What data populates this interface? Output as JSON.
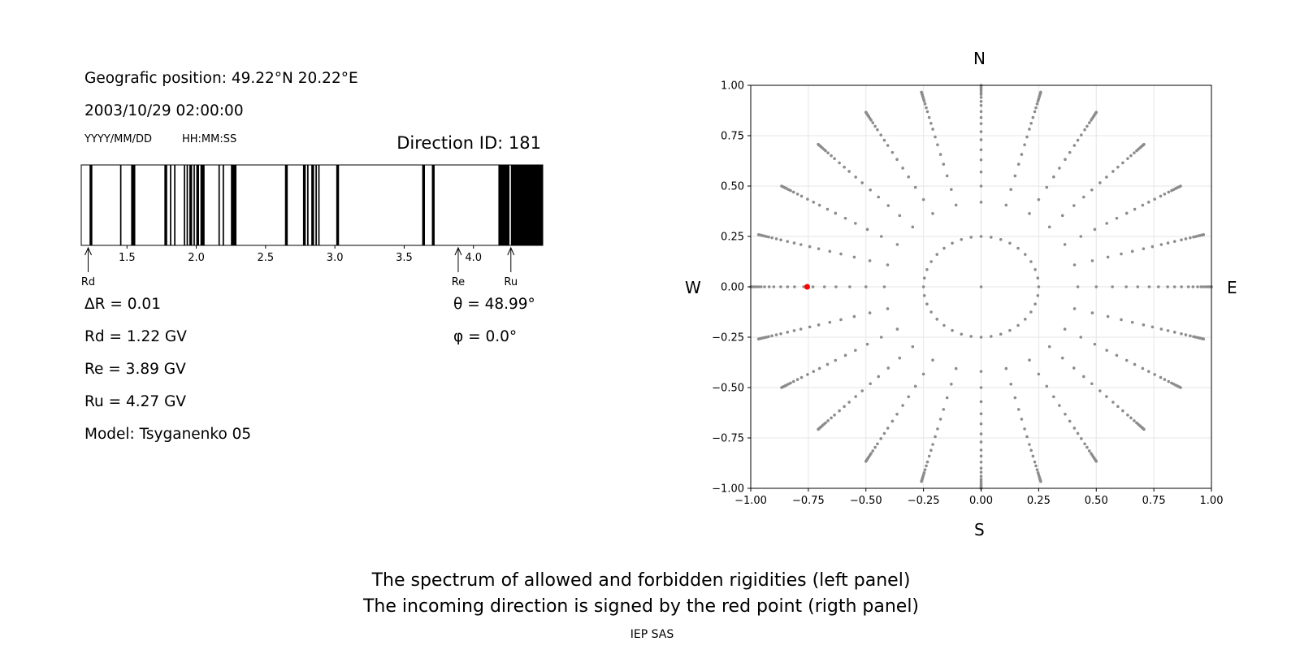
{
  "info": {
    "geo_position": "Geografic position: 49.22°N 20.22°E",
    "datetime": "2003/10/29 02:00:00",
    "date_format": "YYYY/MM/DD",
    "time_format": "HH:MM:SS",
    "direction_id": "Direction ID: 181"
  },
  "params": {
    "delta_r": "ΔR = 0.01",
    "rd": "Rd = 1.22 GV",
    "re": "Re = 3.89 GV",
    "ru": "Ru = 4.27 GV",
    "model": "Model: Tsyganenko 05",
    "theta": "θ = 48.99°",
    "phi": "φ = 0.0°"
  },
  "compass": {
    "north": "N",
    "south": "S",
    "west": "W",
    "east": "E"
  },
  "caption": {
    "line1": "The spectrum of allowed and forbidden rigidities (left panel)",
    "line2": "The incoming direction is signed by the red point (rigth panel)",
    "credit": "IEP SAS"
  },
  "colors": {
    "forbidden": "#000000",
    "allowed": "#ffffff",
    "grid_points": "#8c8c8c",
    "highlight": "#ff0000"
  },
  "chart_data": [
    {
      "type": "bar",
      "name": "rigidity-spectrum",
      "xlim": [
        1.17,
        4.5
      ],
      "x_ticks": [
        1.5,
        2.0,
        2.5,
        3.0,
        3.5,
        4.0
      ],
      "x_tick_labels": [
        "1.5",
        "2.0",
        "2.5",
        "3.0",
        "3.5",
        "4.0"
      ],
      "forbidden_intervals": [
        [
          1.23,
          1.25
        ],
        [
          1.45,
          1.46
        ],
        [
          1.53,
          1.56
        ],
        [
          1.77,
          1.79
        ],
        [
          1.81,
          1.82
        ],
        [
          1.84,
          1.85
        ],
        [
          1.91,
          1.92
        ],
        [
          1.93,
          1.94
        ],
        [
          1.95,
          1.97
        ],
        [
          1.98,
          1.99
        ],
        [
          2.0,
          2.02
        ],
        [
          2.03,
          2.06
        ],
        [
          2.16,
          2.17
        ],
        [
          2.19,
          2.2
        ],
        [
          2.25,
          2.29
        ],
        [
          2.64,
          2.66
        ],
        [
          2.77,
          2.79
        ],
        [
          2.8,
          2.81
        ],
        [
          2.83,
          2.85
        ],
        [
          2.86,
          2.87
        ],
        [
          2.88,
          2.89
        ],
        [
          3.01,
          3.03
        ],
        [
          3.63,
          3.65
        ],
        [
          3.7,
          3.72
        ],
        [
          4.18,
          4.26
        ],
        [
          4.27,
          4.5
        ]
      ],
      "markers": [
        {
          "label": "Rd",
          "value": 1.22
        },
        {
          "label": "Re",
          "value": 3.89
        },
        {
          "label": "Ru",
          "value": 4.27
        }
      ]
    },
    {
      "type": "scatter",
      "name": "incoming-directions",
      "xlim": [
        -1.0,
        1.0
      ],
      "ylim": [
        -1.0,
        1.0
      ],
      "x_ticks": [
        -1.0,
        -0.75,
        -0.5,
        -0.25,
        0.0,
        0.25,
        0.5,
        0.75,
        1.0
      ],
      "x_tick_labels": [
        "−1.00",
        "−0.75",
        "−0.50",
        "−0.25",
        "0.00",
        "0.25",
        "0.50",
        "0.75",
        "1.00"
      ],
      "y_ticks": [
        -1.0,
        -0.75,
        -0.5,
        -0.25,
        0.0,
        0.25,
        0.5,
        0.75,
        1.0
      ],
      "y_tick_labels": [
        "−1.00",
        "−0.75",
        "−0.50",
        "−0.25",
        "0.00",
        "0.25",
        "0.50",
        "0.75",
        "1.00"
      ],
      "grid": true,
      "grid_points": {
        "center": [
          0,
          0
        ],
        "inner_ring_radius": 0.25,
        "inner_ring_azimuth_step_deg": 10,
        "spokes_azimuth_step_deg": 15,
        "spoke_radii": [
          0.42,
          0.5,
          0.57,
          0.63,
          0.68,
          0.73,
          0.77,
          0.81,
          0.84,
          0.87,
          0.9,
          0.92,
          0.94,
          0.955,
          0.965,
          0.975,
          0.983,
          0.99,
          0.995,
          1.0
        ]
      },
      "highlighted_point": {
        "x": -0.755,
        "y": 0.0
      }
    }
  ]
}
